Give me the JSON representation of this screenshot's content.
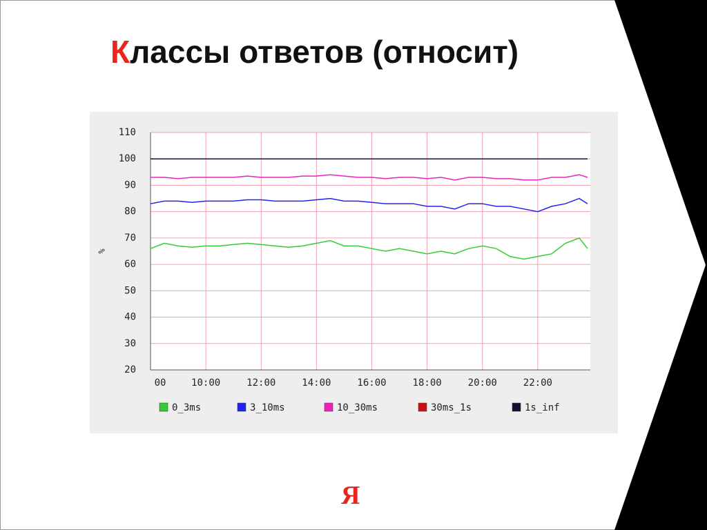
{
  "slide_title": "Классы ответов (относит)",
  "logo": "Я",
  "chart_data": {
    "type": "line",
    "ylabel": "%",
    "x": [
      8,
      8.5,
      9,
      9.5,
      10,
      10.5,
      11,
      11.5,
      12,
      12.5,
      13,
      13.5,
      14,
      14.5,
      15,
      15.5,
      16,
      16.5,
      17,
      17.5,
      18,
      18.5,
      19,
      19.5,
      20,
      20.5,
      21,
      21.5,
      22,
      22.5,
      23,
      23.5,
      23.8
    ],
    "xlim": [
      8,
      23.9
    ],
    "xticks": [
      {
        "value": 8,
        "label": "00"
      },
      {
        "value": 10,
        "label": "10:00"
      },
      {
        "value": 12,
        "label": "12:00"
      },
      {
        "value": 14,
        "label": "14:00"
      },
      {
        "value": 16,
        "label": "16:00"
      },
      {
        "value": 18,
        "label": "18:00"
      },
      {
        "value": 20,
        "label": "20:00"
      },
      {
        "value": 22,
        "label": "22:00"
      }
    ],
    "ylim": [
      20,
      110
    ],
    "yticks": [
      20,
      30,
      40,
      50,
      60,
      70,
      80,
      90,
      100,
      110
    ],
    "grid": true,
    "series": [
      {
        "name": "0_3ms",
        "color": "#33cc33",
        "values": [
          66,
          68,
          67,
          66.5,
          67,
          67,
          67.5,
          68,
          67.5,
          67,
          66.5,
          67,
          68,
          69,
          67,
          67,
          66,
          65,
          66,
          65,
          64,
          65,
          64,
          66,
          67,
          66,
          63,
          62,
          63,
          64,
          68,
          70,
          66
        ]
      },
      {
        "name": "3_10ms",
        "color": "#2222ee",
        "values": [
          83,
          84,
          84,
          83.5,
          84,
          84,
          84,
          84.5,
          84.5,
          84,
          84,
          84,
          84.5,
          85,
          84,
          84,
          83.5,
          83,
          83,
          83,
          82,
          82,
          81,
          83,
          83,
          82,
          82,
          81,
          80,
          82,
          83,
          85,
          83
        ]
      },
      {
        "name": "10_30ms",
        "color": "#ee22bb",
        "values": [
          93,
          93,
          92.5,
          93,
          93,
          93,
          93,
          93.5,
          93,
          93,
          93,
          93.5,
          93.5,
          94,
          93.5,
          93,
          93,
          92.5,
          93,
          93,
          92.5,
          93,
          92,
          93,
          93,
          92.5,
          92.5,
          92,
          92,
          93,
          93,
          94,
          93
        ]
      },
      {
        "name": "30ms_1s",
        "color": "#cc1111",
        "values": [
          100,
          100,
          100,
          100,
          100,
          100,
          100,
          100,
          100,
          100,
          100,
          100,
          100,
          100,
          100,
          100,
          100,
          100,
          100,
          100,
          100,
          100,
          100,
          100,
          100,
          100,
          100,
          100,
          100,
          100,
          100,
          100,
          100
        ]
      },
      {
        "name": "1s_inf",
        "color": "#111133",
        "values": [
          100,
          100,
          100,
          100,
          100,
          100,
          100,
          100,
          100,
          100,
          100,
          100,
          100,
          100,
          100,
          100,
          100,
          100,
          100,
          100,
          100,
          100,
          100,
          100,
          100,
          100,
          100,
          100,
          100,
          100,
          100,
          100,
          100
        ]
      }
    ]
  }
}
